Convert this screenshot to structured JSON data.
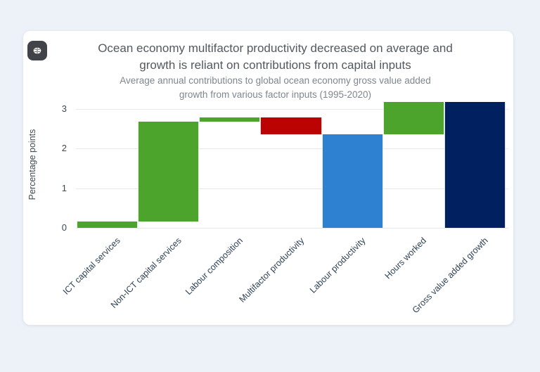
{
  "header": {
    "title_line1": "Ocean economy multifactor productivity decreased on average and",
    "title_line2": "growth is reliant on contributions from capital inputs",
    "subtitle_line1": "Average annual contributions to global ocean economy gross value added",
    "subtitle_line2": "growth from various factor inputs (1995-2020)",
    "logo_icon": "brain-icon"
  },
  "colors": {
    "background": "#edf1f8",
    "card": "#ffffff",
    "icon_background": "#404448",
    "title_text": "#53595f",
    "subtitle_text": "#7e868e",
    "axis_text": "#3e4854",
    "x_label_text": "#2f4256",
    "gridline": "#e7e7e7",
    "increase": "#4ca42c",
    "decrease": "#bb0304",
    "subtotal": "#2e80d0",
    "total": "#00205f"
  },
  "chart_data": {
    "type": "bar",
    "subtype": "waterfall",
    "title": "Ocean economy multifactor productivity decreased on average and growth is reliant on contributions from capital inputs",
    "subtitle": "Average annual contributions to global ocean economy gross value added growth from various factor inputs (1995-2020)",
    "ylabel": "Percentage points",
    "xlabel": "",
    "yticks": [
      0,
      1,
      2,
      3
    ],
    "ylim": [
      0,
      3.18
    ],
    "grid": true,
    "legend_position": "none",
    "categories": [
      "ICT capital services",
      "Non-ICT capital services",
      "Labour composition",
      "Multifactor productivity",
      "Labour productivity",
      "Hours worked",
      "Gross value added growth"
    ],
    "bars": [
      {
        "label": "ICT capital services",
        "start": 0,
        "end": 0.16,
        "contribution": 0.16,
        "color": "#4ca42c",
        "role": "increase"
      },
      {
        "label": "Non-ICT capital services",
        "start": 0.16,
        "end": 2.69,
        "contribution": 2.53,
        "color": "#4ca42c",
        "role": "increase"
      },
      {
        "label": "Labour composition",
        "start": 2.69,
        "end": 2.79,
        "contribution": 0.1,
        "color": "#4ca42c",
        "role": "increase"
      },
      {
        "label": "Multifactor productivity",
        "start": 2.79,
        "end": 2.36,
        "contribution": -0.43,
        "color": "#bb0304",
        "role": "decrease"
      },
      {
        "label": "Labour productivity",
        "start": 0,
        "end": 2.36,
        "contribution": 2.36,
        "color": "#2e80d0",
        "role": "subtotal"
      },
      {
        "label": "Hours worked",
        "start": 2.36,
        "end": 3.18,
        "contribution": 0.82,
        "color": "#4ca42c",
        "role": "increase"
      },
      {
        "label": "Gross value added growth",
        "start": 0,
        "end": 3.18,
        "contribution": 3.18,
        "color": "#00205f",
        "role": "total"
      }
    ]
  }
}
